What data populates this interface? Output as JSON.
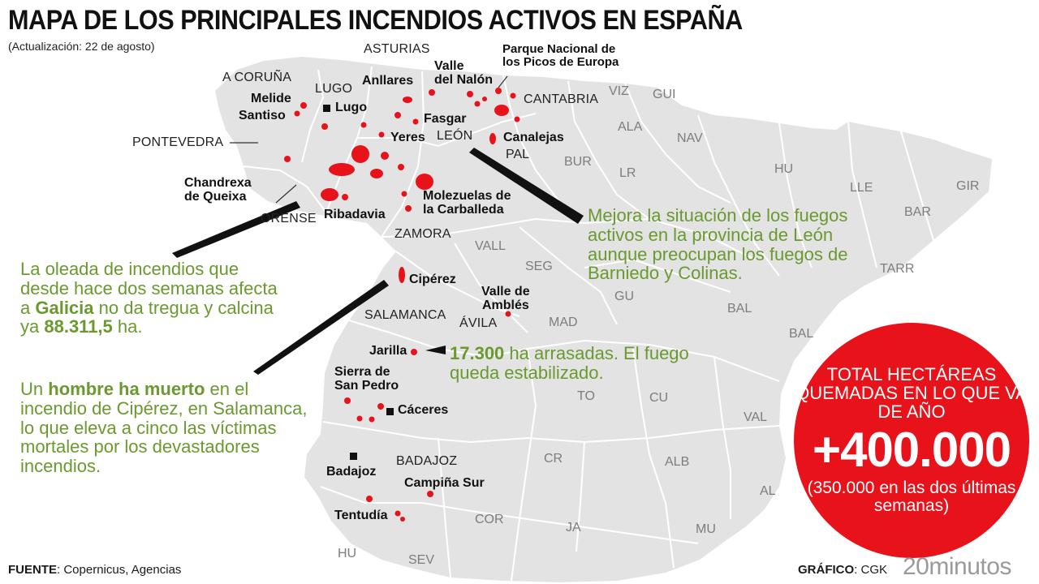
{
  "title": "MAPA DE LOS PRINCIPALES INCENDIOS ACTIVOS EN ESPAÑA",
  "subtitle": "(Actualización: 22 de agosto)",
  "colors": {
    "land": "#e3e3e3",
    "borders": "#ffffff",
    "fire": "#e8121b",
    "callout_text": "#6a9a2f",
    "total_circle": "#e8121b"
  },
  "provinces": {
    "a_coruna": "A CORUÑA",
    "lugo": "LUGO",
    "asturias": "ASTURIAS",
    "cantabria": "CANTABRIA",
    "pontevedra": "PONTEVEDRA",
    "leon": "LEÓN",
    "orense": "ORENSE",
    "zamora": "ZAMORA",
    "salamanca": "SALAMANCA",
    "avila": "ÁVILA",
    "badajoz": "BADAJOZ"
  },
  "abbreviations": {
    "viz": "VIZ",
    "gui": "GUI",
    "ala": "ALA",
    "nav": "NAV",
    "pal": "PAL",
    "bur": "BUR",
    "lr": "LR",
    "hu_north": "HU",
    "lle": "LLE",
    "gir": "GIR",
    "bar": "BAR",
    "tarr": "TARR",
    "vall": "VALL",
    "seg": "SEG",
    "gu": "GU",
    "bal_1": "BAL",
    "bal_2": "BAL",
    "mad": "MAD",
    "to": "TO",
    "cu": "CU",
    "val": "VAL",
    "cr": "CR",
    "alb": "ALB",
    "al": "AL",
    "cor": "COR",
    "ja": "JA",
    "mu": "MU",
    "hu_south": "HU",
    "sev": "SEV"
  },
  "fires": {
    "melide": "Melide",
    "santiso": "Santiso",
    "lugo_city": "Lugo",
    "anllares": "Anllares",
    "valle_del_nalon_1": "Valle",
    "valle_del_nalon_2": "del Nalón",
    "picos_1": "Parque Nacional de",
    "picos_2": "los Picos de Europa",
    "fasgar": "Fasgar",
    "yeres": "Yeres",
    "canalejas": "Canalejas",
    "chandrexa_1": "Chandrexa",
    "chandrexa_2": "de Queixa",
    "ribadavia": "Ribadavia",
    "molezuelas_1": "Molezuelas de",
    "molezuelas_2": "la Carballeda",
    "ciperez": "Cipérez",
    "valle_ambles_1": "Valle de",
    "valle_ambles_2": "Amblés",
    "jarilla": "Jarilla",
    "sierra_1": "Sierra de",
    "sierra_2": "San Pedro",
    "caceres": "Cáceres",
    "badajoz_city": "Badajoz",
    "campina_sur": "Campiña Sur",
    "tentudia": "Tentudía"
  },
  "callouts": {
    "galicia": {
      "p1": "La oleada de incendios que desde hace dos semanas afecta a ",
      "b1": "Galicia",
      "p2": " no da tregua y calcina ya ",
      "b2": "88.311,5",
      "p3": " ha."
    },
    "ciperez": {
      "p1": "Un ",
      "b1": "hombre ha muerto",
      "p2": " en el incendio de Cipérez, en Salamanca, lo que eleva a cinco las víctimas mortales por los devastadores incendios."
    },
    "leon": {
      "text": "Mejora la situación de los fuegos activos en la provincia de León aunque preocupan los fuegos de Barniedo y Colinas."
    },
    "jarilla": {
      "b1": "17.300",
      "p1": " ha arrasadas. El fuego queda estabilizado."
    }
  },
  "total": {
    "title": "TOTAL HECTÁREAS QUEMADAS EN LO QUE VA DE AÑO",
    "value": "+400.000",
    "note": "(350.000 en las dos últimas semanas)"
  },
  "footer": {
    "source_label": "FUENTE",
    "source_text": ": Copernicus, Agencias",
    "graphic_label": "GRÁFICO",
    "graphic_text": ": CGK",
    "logo": "20minutos"
  }
}
